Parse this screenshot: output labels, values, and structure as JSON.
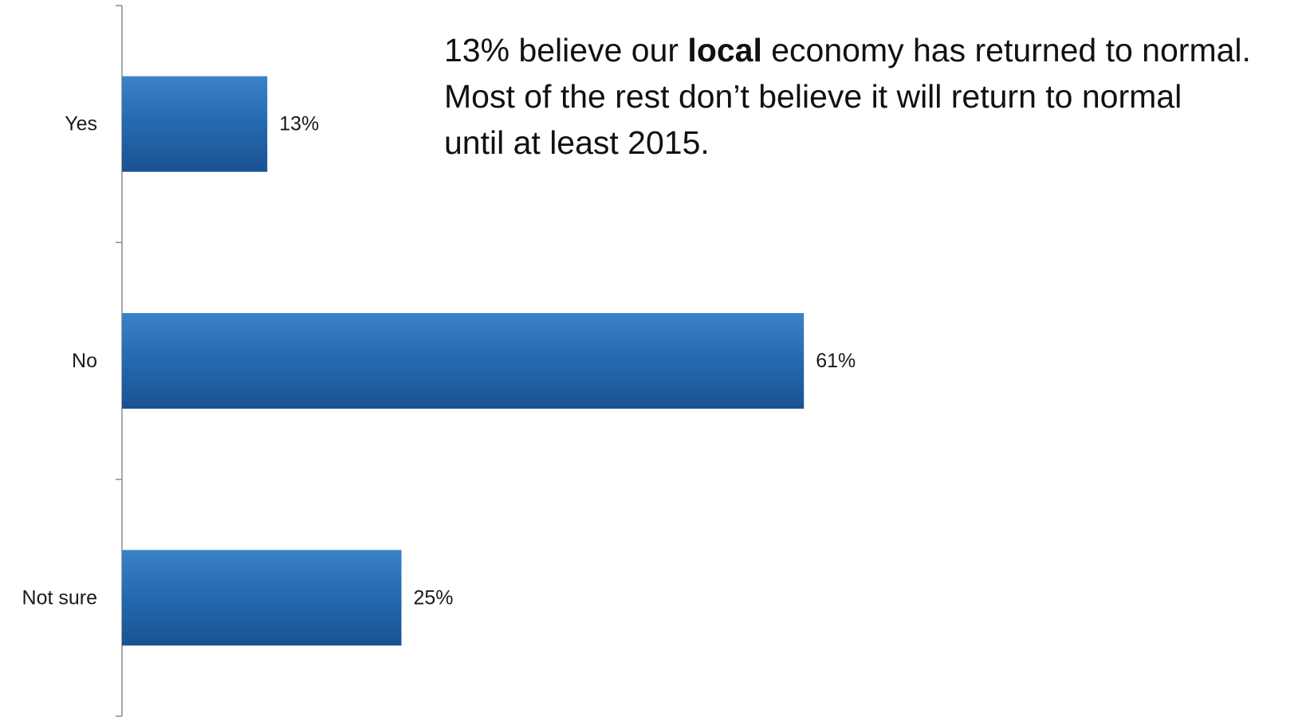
{
  "chart_data": {
    "type": "bar",
    "orientation": "horizontal",
    "categories": [
      "Yes",
      "No",
      "Not sure"
    ],
    "values": [
      13,
      61,
      25
    ],
    "value_labels": [
      "13%",
      "61%",
      "25%"
    ],
    "xlim": [
      0,
      100
    ],
    "title": "",
    "xlabel": "",
    "ylabel": "",
    "grid": false,
    "legend": "none",
    "bar_color": "#2469b0",
    "annotation": {
      "line1_before": "13% believe our ",
      "line1_bold": "local",
      "line1_after": " economy has returned to normal.",
      "line2": "Most of the rest don’t believe it will return to normal",
      "line3": "until at least 2015."
    }
  }
}
